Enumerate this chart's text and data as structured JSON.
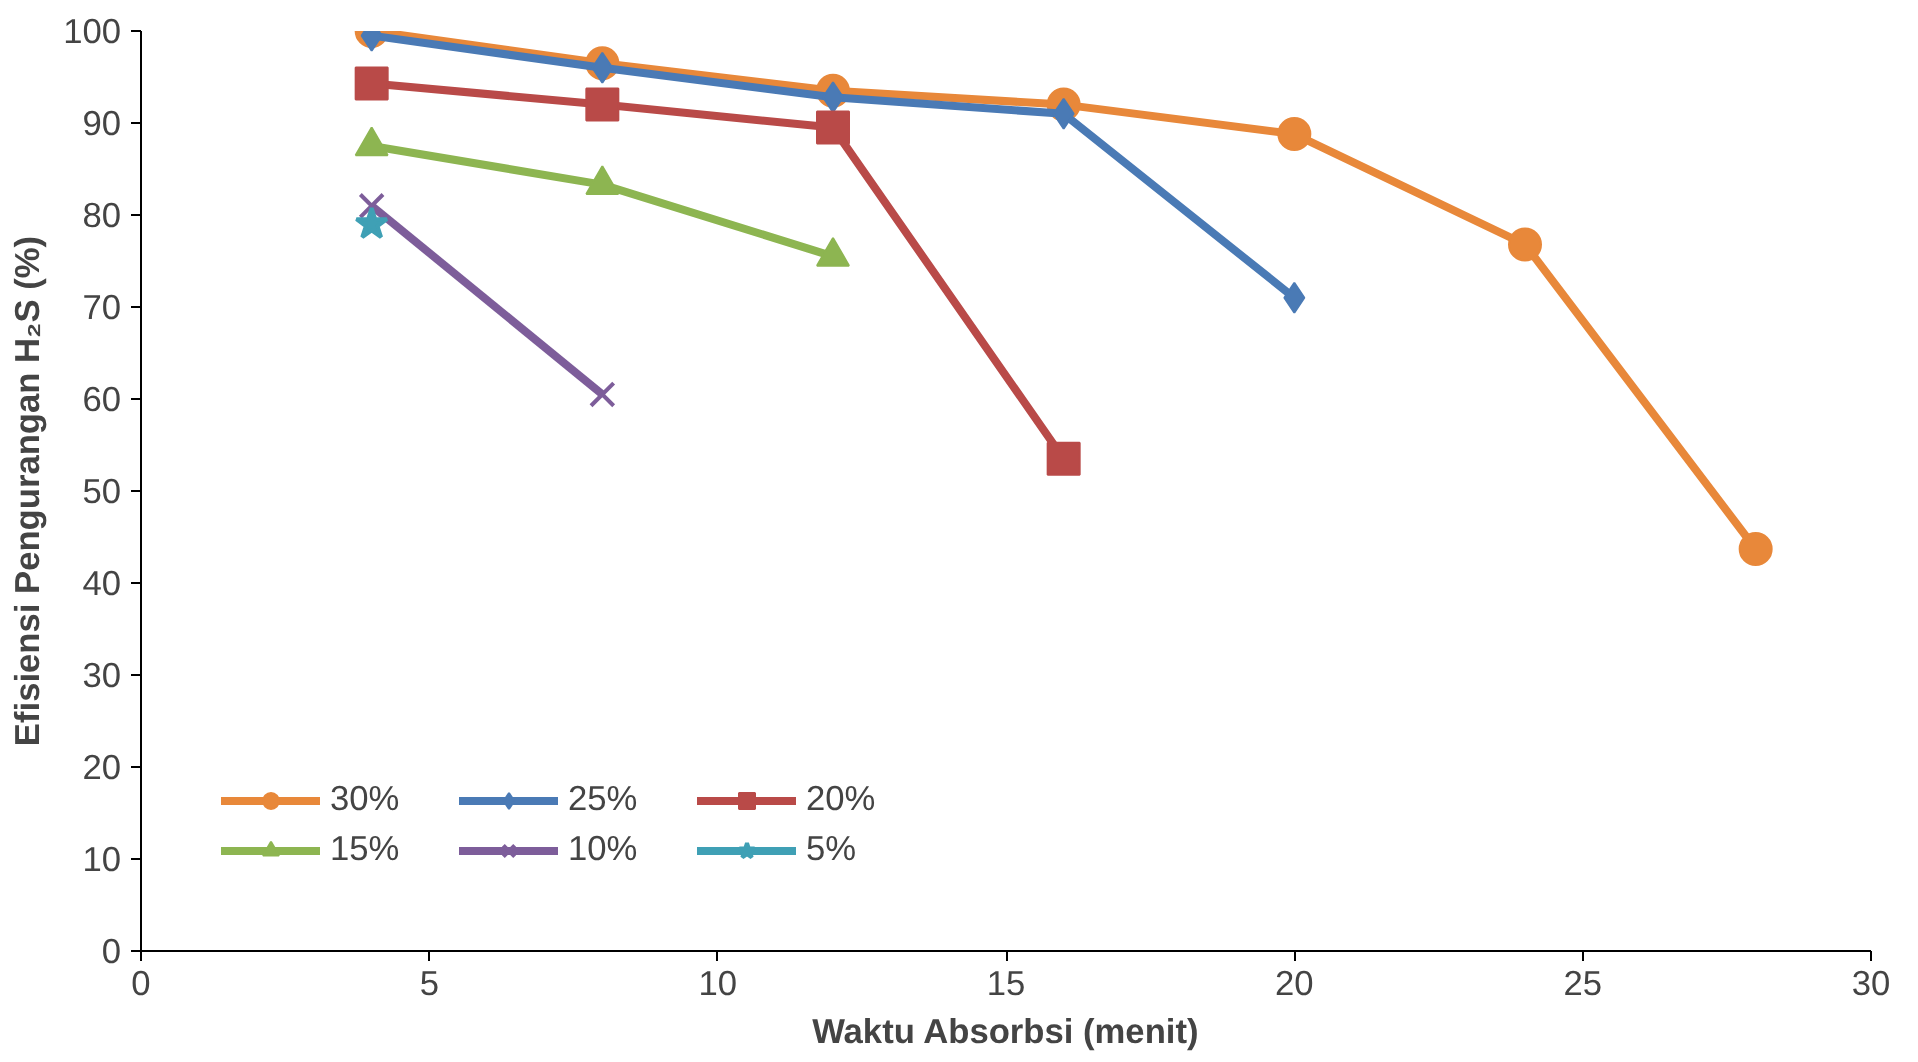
{
  "chart_data": {
    "type": "line",
    "xlabel": "Waktu Absorbsi (menit)",
    "ylabel": "Efisiensi Pengurangan H₂S (%)",
    "xlim": [
      0,
      30
    ],
    "xticks": [
      0,
      5,
      10,
      15,
      20,
      25,
      30
    ],
    "ylim": [
      0,
      100
    ],
    "yticks": [
      0,
      10,
      20,
      30,
      40,
      50,
      60,
      70,
      80,
      90,
      100
    ],
    "grid": false,
    "legend": "bottom left",
    "series": [
      {
        "name": "30%",
        "color": "#e8883a",
        "marker": "circle",
        "x": [
          4,
          8,
          12,
          16,
          20,
          24,
          28
        ],
        "values": [
          100,
          96.5,
          93.5,
          92,
          88.8,
          76.8,
          43.7
        ]
      },
      {
        "name": "25%",
        "color": "#4a7ab5",
        "marker": "diamond",
        "x": [
          4,
          8,
          12,
          16,
          20
        ],
        "values": [
          99.5,
          96,
          92.8,
          91,
          71
        ]
      },
      {
        "name": "20%",
        "color": "#b94a48",
        "marker": "square",
        "x": [
          4,
          8,
          12,
          16
        ],
        "values": [
          94.3,
          92,
          89.5,
          53.5
        ]
      },
      {
        "name": "15%",
        "color": "#8db551",
        "marker": "triangle",
        "x": [
          4,
          8,
          12
        ],
        "values": [
          87.5,
          83.3,
          75.5
        ]
      },
      {
        "name": "10%",
        "color": "#7d5d9a",
        "marker": "cross",
        "x": [
          4,
          8
        ],
        "values": [
          81,
          60.5
        ]
      },
      {
        "name": "5%",
        "color": "#3fa0b5",
        "marker": "star",
        "x": [
          4
        ],
        "values": [
          79
        ]
      }
    ]
  }
}
